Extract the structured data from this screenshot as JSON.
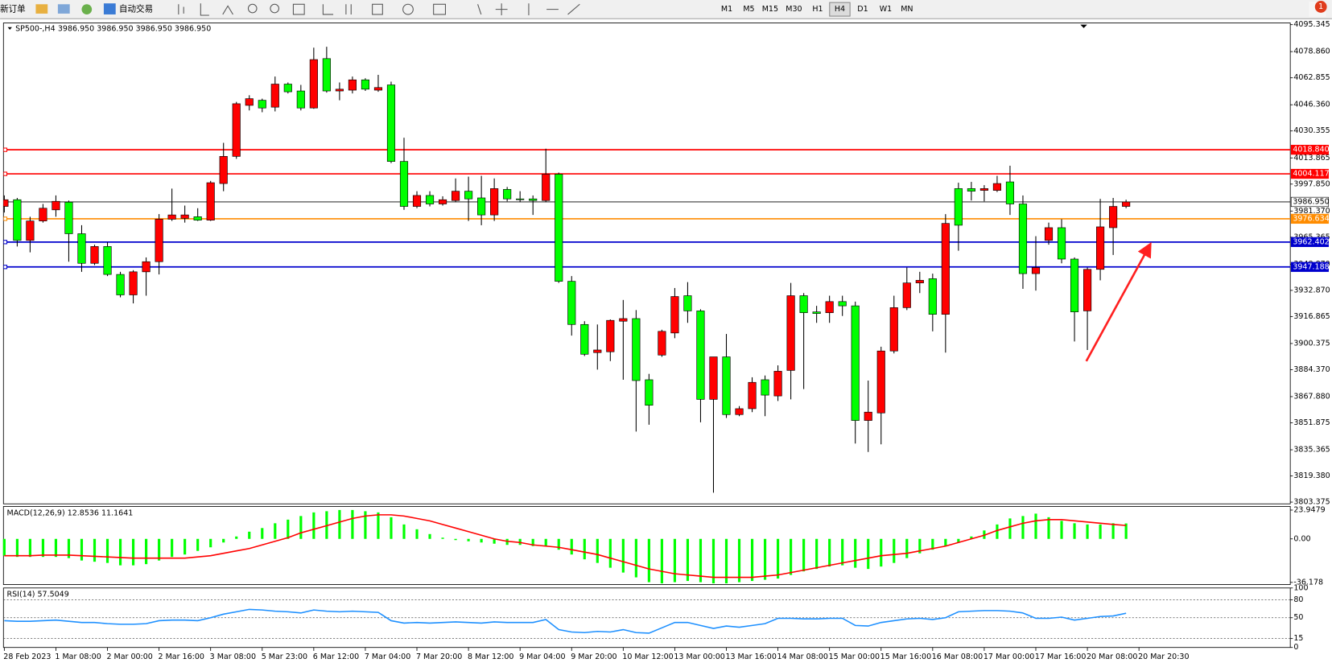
{
  "toolbar": {
    "new_order": "新订单",
    "auto_trading": "自动交易",
    "timeframes": [
      "M1",
      "M5",
      "M15",
      "M30",
      "H1",
      "H4",
      "D1",
      "W1",
      "MN"
    ],
    "active_timeframe": "H4",
    "notifications": 1
  },
  "chart_data": [
    {
      "type": "candlestick",
      "title": "SP500-,H4",
      "subtitle": "3986.950 3986.950 3986.950 3986.950",
      "categories": [
        "28 Feb 2023",
        null,
        null,
        null,
        "1 Mar 08:00",
        null,
        null,
        null,
        "2 Mar 00:00",
        null,
        null,
        null,
        "2 Mar 16:00",
        null,
        null,
        null,
        "3 Mar 08:00",
        null,
        null,
        null,
        "5 Mar 23:00",
        null,
        null,
        null,
        "6 Mar 12:00",
        null,
        null,
        null,
        "7 Mar 04:00",
        null,
        null,
        null,
        "7 Mar 20:00",
        null,
        null,
        null,
        "8 Mar 12:00",
        null,
        null,
        null,
        "9 Mar 04:00",
        null,
        null,
        null,
        "9 Mar 20:00",
        null,
        null,
        null,
        "10 Mar 12:00",
        null,
        null,
        null,
        "13 Mar 00:00",
        null,
        null,
        null,
        "13 Mar 16:00",
        null,
        null,
        null,
        "14 Mar 08:00",
        null,
        null,
        null,
        "15 Mar 00:00",
        null,
        null,
        null,
        "15 Mar 16:00",
        null,
        null,
        null,
        "16 Mar 08:00",
        null,
        null,
        null,
        "17 Mar 00:00",
        null,
        null,
        null,
        "17 Mar 16:00",
        null,
        null,
        null,
        "20 Mar 08:00",
        null,
        null,
        null,
        "20 Mar 20:30"
      ],
      "open": [
        3984.2,
        3988.3,
        3963.4,
        3975.3,
        3982.1,
        3986.8,
        3967.5,
        3949.4,
        3959.7,
        3942.6,
        3930.1,
        3944.2,
        3950.4,
        3976.4,
        3976.9,
        3977.9,
        3975.8,
        3998.2,
        4014.8,
        4046.0,
        4049.1,
        4044.9,
        4059.0,
        4054.8,
        4044.4,
        4074.6,
        4054.8,
        4055.3,
        4061.6,
        4055.3,
        4058.5,
        4011.7,
        3984.2,
        3990.9,
        3985.7,
        3987.8,
        3993.5,
        3989.4,
        3979.0,
        3994.6,
        3988.8,
        3988.8,
        3987.8,
        4003.9,
        3938.4,
        3912.0,
        3894.8,
        3895.3,
        3914.0,
        3915.6,
        3878.2,
        3893.3,
        3906.8,
        3929.6,
        3920.3,
        3866.2,
        3892.2,
        3856.9,
        3860.5,
        3878.2,
        3868.3,
        3883.9,
        3929.6,
        3919.7,
        3919.2,
        3926.0,
        3923.4,
        3853.3,
        3857.9,
        3895.8,
        3922.3,
        3937.4,
        3940.0,
        3918.2,
        3995.1,
        3995.1,
        3994.0,
        3994.0,
        3999.2,
        3985.7,
        3943.1,
        3963.4,
        3971.2,
        3952.0,
        3920.3,
        3945.7,
        3971.2,
        3984.2,
        null
      ],
      "high": [
        3990.9,
        3989.4,
        3977.9,
        3985.7,
        3990.9,
        3987.8,
        3972.7,
        3960.8,
        3962.3,
        3944.2,
        3945.2,
        3953.0,
        3979.5,
        3995.1,
        3984.7,
        3983.1,
        3999.8,
        4023.1,
        4048.1,
        4052.2,
        4050.1,
        4063.6,
        4060.0,
        4058.5,
        4081.3,
        4081.8,
        4060.0,
        4063.6,
        4062.6,
        4064.7,
        4060.5,
        4026.2,
        3993.5,
        3993.5,
        3990.4,
        4001.3,
        4002.4,
        4002.9,
        4001.3,
        3996.1,
        3993.5,
        3990.9,
        4019.5,
        4004.9,
        3941.6,
        3914.0,
        3912.0,
        3915.1,
        3927.0,
        3920.8,
        3881.8,
        3908.8,
        3934.3,
        3937.9,
        3921.3,
        3892.2,
        3906.2,
        3862.1,
        3879.7,
        3880.8,
        3887.0,
        3937.4,
        3931.2,
        3923.4,
        3929.6,
        3929.6,
        3926.0,
        3877.7,
        3898.4,
        3929.6,
        3946.8,
        3944.2,
        3943.1,
        3979.5,
        3998.7,
        3999.2,
        3997.2,
        4002.9,
        4009.1,
        3990.9,
        3966.0,
        3974.3,
        3976.4,
        3953.0,
        3946.8,
        3988.8,
        3989.4,
        3988.3,
        null
      ],
      "low": [
        3980.5,
        3959.7,
        3956.1,
        3974.3,
        3977.9,
        3950.4,
        3944.2,
        3948.3,
        3941.6,
        3928.6,
        3924.9,
        3929.6,
        3942.6,
        3975.3,
        3974.3,
        3975.3,
        3975.3,
        3993.5,
        4013.3,
        4042.9,
        4041.8,
        4042.3,
        4053.3,
        4042.9,
        4043.9,
        4053.8,
        4049.1,
        4053.3,
        4054.8,
        4054.3,
        4010.7,
        3982.1,
        3983.1,
        3984.2,
        3984.7,
        3986.8,
        3975.3,
        3972.7,
        3975.3,
        3987.3,
        3986.8,
        3979.0,
        3986.8,
        3937.4,
        3905.2,
        3892.7,
        3884.4,
        3889.6,
        3878.2,
        3846.5,
        3850.7,
        3892.2,
        3903.6,
        3913.0,
        3852.2,
        3809.1,
        3854.8,
        3855.9,
        3858.4,
        3855.9,
        3865.2,
        3866.2,
        3872.5,
        3913.0,
        3913.0,
        3917.2,
        3839.2,
        3834.0,
        3838.7,
        3894.3,
        3920.8,
        3931.2,
        3907.8,
        3894.8,
        3957.1,
        3987.8,
        3987.3,
        3993.0,
        3979.0,
        3933.8,
        3932.7,
        3960.8,
        3949.4,
        3901.6,
        3896.4,
        3939.0,
        3954.5,
        3983.1,
        null
      ],
      "close": [
        3988.3,
        3963.4,
        3975.3,
        3983.1,
        3987.3,
        3967.5,
        3949.4,
        3959.7,
        3942.6,
        3930.1,
        3944.2,
        3950.4,
        3976.4,
        3979.0,
        3979.0,
        3975.8,
        3998.7,
        4014.8,
        4047.0,
        4050.1,
        4044.4,
        4059.0,
        4054.3,
        4044.4,
        4074.0,
        4054.8,
        4055.9,
        4061.6,
        4055.9,
        4056.9,
        4011.7,
        3984.2,
        3990.9,
        3985.7,
        3988.3,
        3993.5,
        3988.8,
        3979.0,
        3995.1,
        3988.8,
        3988.3,
        3987.8,
        4003.9,
        3938.4,
        3912.0,
        3893.8,
        3896.4,
        3914.5,
        3915.6,
        3877.7,
        3862.6,
        3907.8,
        3929.1,
        3920.3,
        3866.2,
        3892.2,
        3856.9,
        3860.5,
        3876.6,
        3868.8,
        3883.4,
        3929.6,
        3919.2,
        3918.7,
        3926.0,
        3923.4,
        3853.3,
        3858.4,
        3895.8,
        3922.3,
        3937.4,
        3939.0,
        3918.2,
        3973.8,
        3972.7,
        3993.5,
        3995.1,
        3998.2,
        3985.7,
        3943.1,
        3946.8,
        3971.2,
        3952.0,
        3919.7,
        3945.7,
        3971.7,
        3984.2,
        3986.95,
        null
      ],
      "up_color": "#ff0000",
      "down_color": "#00ff00",
      "grid": false,
      "ylim": [
        3802.3,
        4096.4
      ],
      "yticks": [
        4095.345,
        {
          "value": 4078.86,
          "label": "4078.860"
        },
        4062.855,
        {
          "value": 4046.36,
          "label": "4046.360"
        },
        4030.355,
        4013.865,
        {
          "value": 3997.85,
          "label": "3997.850"
        },
        {
          "value": 3981.37,
          "label": "3981.370"
        },
        3965.365,
        {
          "value": 3948.87,
          "label": "3948.870"
        },
        {
          "value": 3932.87,
          "label": "3932.870"
        },
        3916.865,
        3900.375,
        {
          "value": 3884.37,
          "label": "3884.370"
        },
        {
          "value": 3867.88,
          "label": "3867.880"
        },
        3851.875,
        3835.365,
        {
          "value": 3819.38,
          "label": "3819.380"
        },
        3803.375
      ],
      "levels": [
        {
          "value": 4018.84,
          "label": "4018.840",
          "color": "#ff0000",
          "text_color": "#ffffff"
        },
        {
          "value": 4004.117,
          "label": "4004.117",
          "color": "#ff0000",
          "text_color": "#ffffff"
        },
        {
          "value": 3986.95,
          "label": "3986.950",
          "color": "#000000",
          "text_color": "#000000"
        },
        {
          "value": 3976.634,
          "label": "3976.634",
          "color": "#ff8c00",
          "text_color": "#ffffff"
        },
        {
          "value": 3962.402,
          "label": "3962.402",
          "color": "#0000cd",
          "text_color": "#ffffff"
        },
        {
          "value": 3947.188,
          "label": "3947.188",
          "color": "#0000cd",
          "text_color": "#ffffff"
        }
      ]
    },
    {
      "type": "macd",
      "title": "MACD(12,26,9) 12.8536 11.1641",
      "histogram": {
        "color": "#00ff00",
        "values": [
          -14,
          -15,
          -15,
          -15,
          -15,
          -16,
          -18,
          -19,
          -20,
          -22,
          -22,
          -21,
          -18,
          -15,
          -13,
          -10,
          -7,
          -3,
          2,
          6,
          9,
          13,
          16,
          19,
          22,
          23,
          24,
          24,
          23,
          22,
          18,
          12,
          8,
          4,
          1,
          -1,
          -2,
          -3,
          -4,
          -5,
          -5,
          -6,
          -6,
          -9,
          -13,
          -17,
          -20,
          -24,
          -28,
          -32,
          -36,
          -37,
          -36,
          -35,
          -36,
          -37,
          -37,
          -36,
          -35,
          -34,
          -33,
          -30,
          -27,
          -25,
          -23,
          -22,
          -24,
          -25,
          -23,
          -20,
          -16,
          -12,
          -9,
          -6,
          -3,
          2,
          7,
          12,
          17,
          19,
          21,
          18,
          15,
          13,
          12,
          12,
          13,
          12.8536,
          null
        ]
      },
      "signal": {
        "color": "#ff0000",
        "values": [
          -14,
          -14,
          -14,
          -13.5,
          -13.5,
          -13.5,
          -14,
          -14.5,
          -15,
          -15.5,
          -16,
          -16,
          -16,
          -16,
          -16,
          -15,
          -14,
          -12,
          -10,
          -8,
          -5,
          -2,
          1,
          5,
          8,
          11,
          14,
          17,
          19,
          20,
          20,
          19,
          17,
          15,
          12,
          9,
          6,
          3,
          0,
          -2,
          -3,
          -5,
          -6,
          -7,
          -9,
          -11,
          -13,
          -16,
          -19,
          -22,
          -25,
          -27,
          -29,
          -30,
          -31,
          -32,
          -32,
          -32,
          -32,
          -31,
          -30,
          -28,
          -26,
          -24,
          -22,
          -20,
          -18,
          -16,
          -14,
          -13,
          -12,
          -10,
          -8,
          -6,
          -3,
          0,
          3,
          7,
          10,
          13,
          15,
          16,
          16,
          15,
          14,
          13,
          12,
          11.1641,
          null
        ]
      },
      "ylim": [
        -38,
        27
      ],
      "yticks": [
        23.9479,
        {
          "value": 0,
          "label": "0.00"
        },
        -36.178
      ]
    },
    {
      "type": "line",
      "title": "RSI(14) 57.5049",
      "color": "#1e90ff",
      "values": [
        45,
        44,
        44,
        45,
        46,
        44,
        42,
        42,
        40,
        39,
        39,
        40,
        45,
        46,
        46,
        45,
        50,
        56,
        60,
        64,
        63,
        61,
        60,
        58,
        63,
        61,
        60,
        61,
        60,
        59,
        45,
        41,
        42,
        41,
        42,
        43,
        42,
        41,
        43,
        42,
        42,
        42,
        47,
        30,
        26,
        25,
        27,
        26,
        30,
        25,
        24,
        33,
        42,
        42,
        37,
        32,
        36,
        34,
        37,
        40,
        49,
        49,
        48,
        48,
        49,
        49,
        37,
        36,
        42,
        45,
        48,
        49,
        47,
        50,
        60,
        61,
        62,
        62,
        61,
        58,
        49,
        49,
        51,
        46,
        49,
        52,
        53,
        57.5049,
        null
      ],
      "ylim": [
        0,
        100
      ],
      "yticks": [
        100,
        80,
        50,
        15,
        0
      ],
      "levels": [
        80,
        50,
        15
      ]
    }
  ]
}
